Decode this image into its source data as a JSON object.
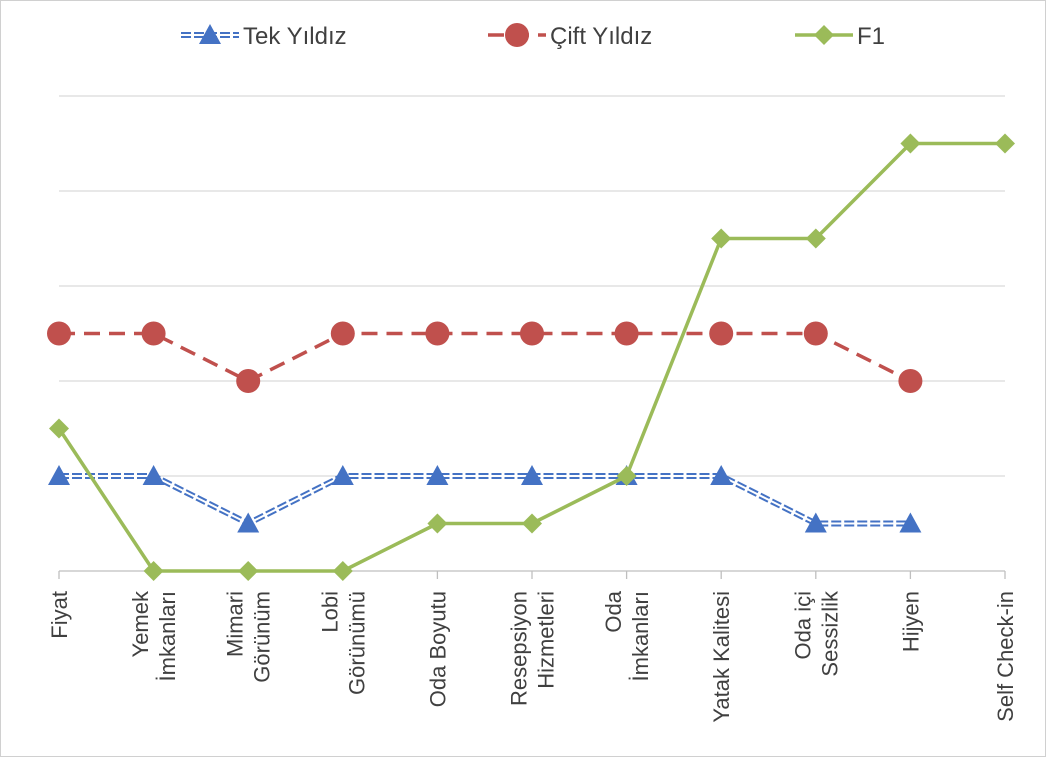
{
  "chart_data": {
    "type": "line",
    "categories": [
      [
        "Fiyat"
      ],
      [
        "Yemek",
        "İmkanları"
      ],
      [
        "Mimari",
        "Görünüm"
      ],
      [
        "Lobi",
        "Görünümü"
      ],
      [
        "Oda Boyutu"
      ],
      [
        "Resepsiyon",
        "Hizmetleri"
      ],
      [
        "Oda",
        "İmkanları"
      ],
      [
        "Yatak Kalitesi"
      ],
      [
        "Oda içi",
        "Sessizlik"
      ],
      [
        "Hijyen"
      ],
      [
        "Self Check-in"
      ]
    ],
    "series": [
      {
        "name": "Tek Yıldız",
        "values": [
          2,
          2,
          1,
          2,
          2,
          2,
          2,
          2,
          1,
          1,
          null
        ],
        "color": "#4472c4",
        "marker": "triangle",
        "line_style": "double"
      },
      {
        "name": "Çift Yıldız",
        "values": [
          5,
          5,
          4,
          5,
          5,
          5,
          5,
          5,
          5,
          4,
          null
        ],
        "color": "#c0504d",
        "marker": "circle",
        "line_style": "dashed"
      },
      {
        "name": "F1",
        "values": [
          3,
          0,
          0,
          0,
          1,
          1,
          2,
          7,
          7,
          9,
          9
        ],
        "color": "#9bbb59",
        "marker": "diamond",
        "line_style": "solid"
      }
    ],
    "ylim": [
      0,
      10
    ],
    "y_gridlines": [
      0,
      2,
      4,
      6,
      8,
      10
    ],
    "y_tick_labels_shown": false,
    "grid": true,
    "legend": "top"
  }
}
